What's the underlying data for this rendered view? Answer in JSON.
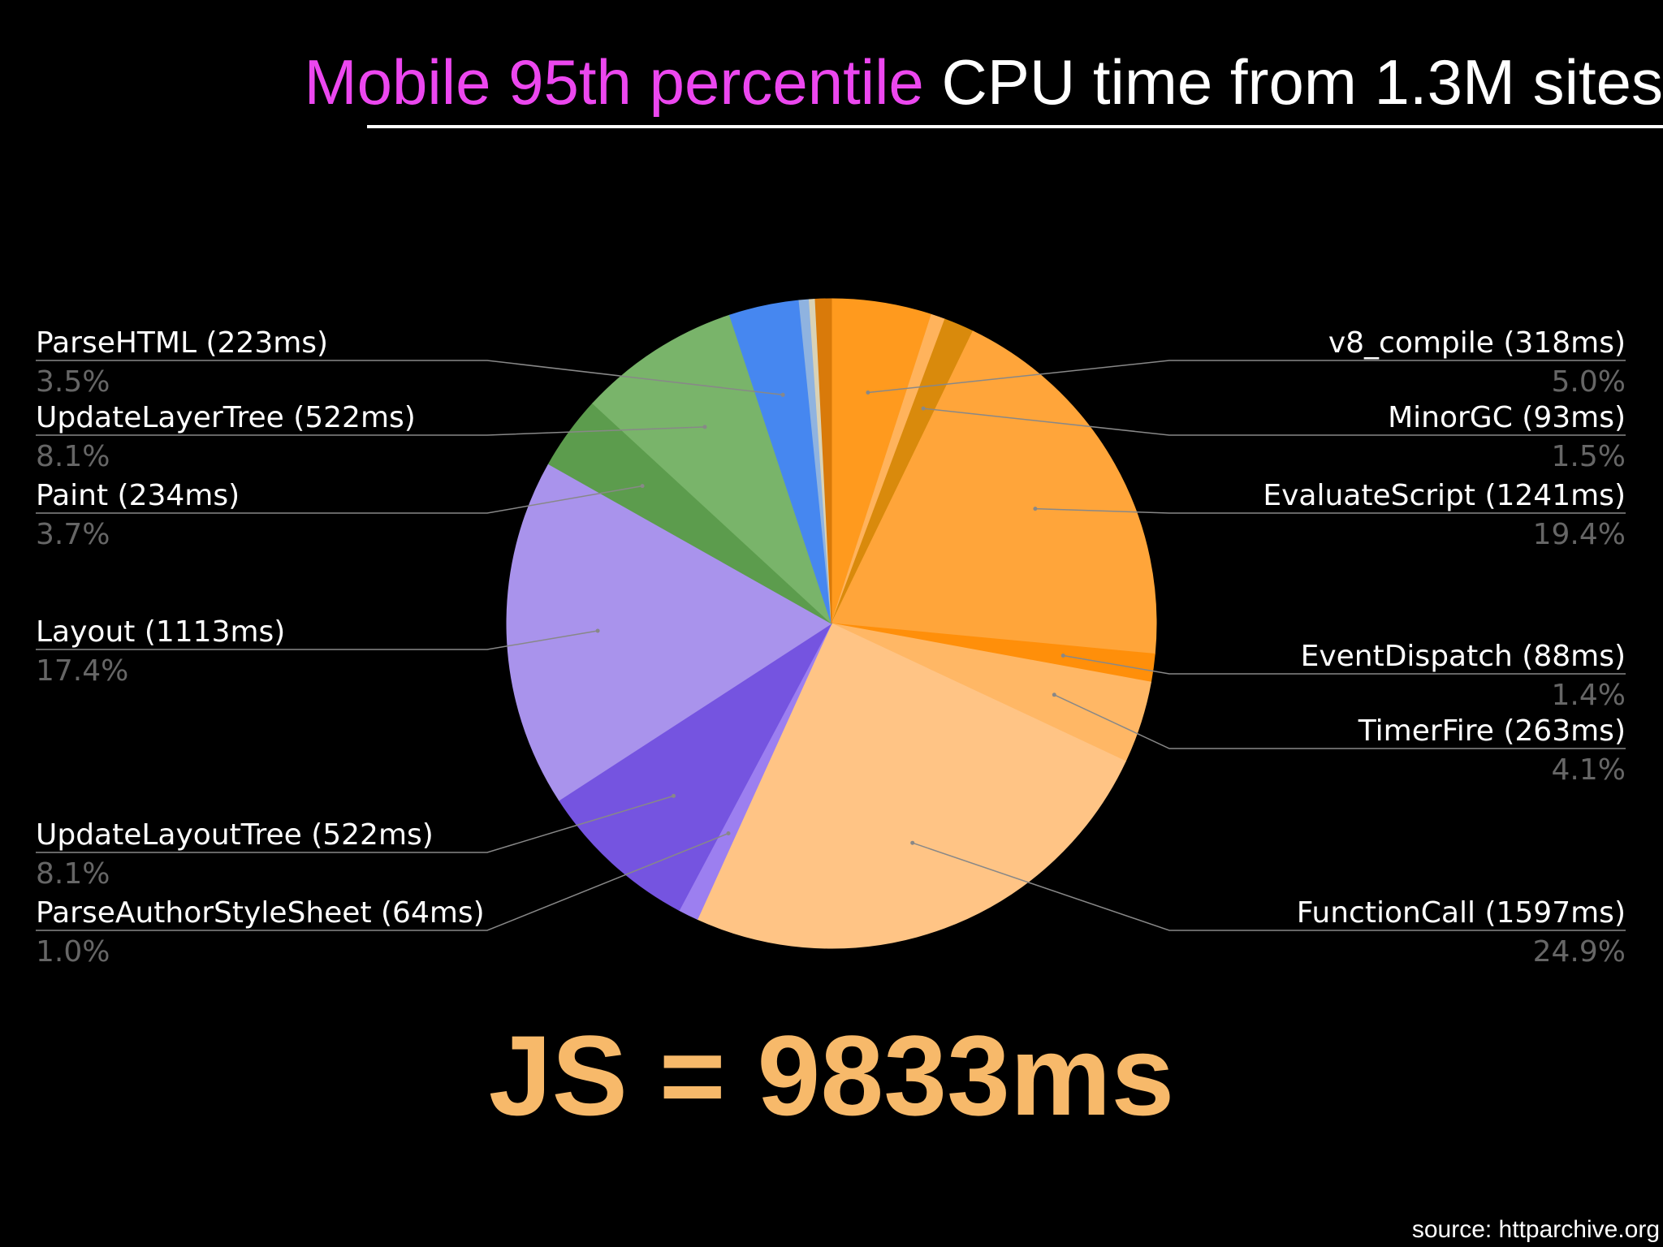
{
  "title": {
    "accent_text": "Mobile 95th percentile",
    "rest_text": " CPU time from 1.3M sites",
    "accent_color": "#ec47ef"
  },
  "headline": "JS = 9833ms",
  "source": "source: httparchive.org",
  "chart_data": {
    "type": "pie",
    "title": "",
    "start_angle_deg": 0,
    "direction": "clockwise",
    "label_color": "#ffffff",
    "percent_color": "#666666",
    "leader_color": "#888888",
    "slices": [
      {
        "name": "v8_compile",
        "label": "v8_compile (318ms)",
        "ms": 318,
        "percent": 5.0,
        "percent_label": "5.0%",
        "color": "#ff9a1e",
        "side": "right",
        "row": 1
      },
      {
        "name": "unlabeled",
        "label": "",
        "ms": 0,
        "percent": 0.7,
        "percent_label": "",
        "color": "#ffb35c",
        "side": "none",
        "row": 0
      },
      {
        "name": "MinorGC",
        "label": "MinorGC (93ms)",
        "ms": 93,
        "percent": 1.5,
        "percent_label": "1.5%",
        "color": "#d98a0c",
        "side": "right",
        "row": 2
      },
      {
        "name": "EvaluateScript",
        "label": "EvaluateScript (1241ms)",
        "ms": 1241,
        "percent": 19.4,
        "percent_label": "19.4%",
        "color": "#ffa53a",
        "side": "right",
        "row": 3
      },
      {
        "name": "EventDispatch",
        "label": "EventDispatch (88ms)",
        "ms": 88,
        "percent": 1.4,
        "percent_label": "1.4%",
        "color": "#ff8f0a",
        "side": "right",
        "row": 4
      },
      {
        "name": "TimerFire",
        "label": "TimerFire (263ms)",
        "ms": 263,
        "percent": 4.1,
        "percent_label": "4.1%",
        "color": "#ffb765",
        "side": "right",
        "row": 5
      },
      {
        "name": "FunctionCall",
        "label": "FunctionCall (1597ms)",
        "ms": 1597,
        "percent": 24.9,
        "percent_label": "24.9%",
        "color": "#ffc485",
        "side": "right",
        "row": 6
      },
      {
        "name": "ParseAuthorStyleSheet",
        "label": "ParseAuthorStyleSheet (64ms)",
        "ms": 64,
        "percent": 1.0,
        "percent_label": "1.0%",
        "color": "#9c7ff0",
        "side": "left",
        "row": 6
      },
      {
        "name": "UpdateLayoutTree",
        "label": "UpdateLayoutTree (522ms)",
        "ms": 522,
        "percent": 8.1,
        "percent_label": "8.1%",
        "color": "#7554e0",
        "side": "left",
        "row": 5
      },
      {
        "name": "Layout",
        "label": "Layout (1113ms)",
        "ms": 1113,
        "percent": 17.4,
        "percent_label": "17.4%",
        "color": "#a993ec",
        "side": "left",
        "row": 4
      },
      {
        "name": "Paint",
        "label": "Paint (234ms)",
        "ms": 234,
        "percent": 3.7,
        "percent_label": "3.7%",
        "color": "#5c9c4d",
        "side": "left",
        "row": 3
      },
      {
        "name": "UpdateLayerTree",
        "label": "UpdateLayerTree (522ms)",
        "ms": 522,
        "percent": 8.1,
        "percent_label": "8.1%",
        "color": "#79b46a",
        "side": "left",
        "row": 2
      },
      {
        "name": "ParseHTML",
        "label": "ParseHTML (223ms)",
        "ms": 223,
        "percent": 3.5,
        "percent_label": "3.5%",
        "color": "#4687f0",
        "side": "left",
        "row": 1
      },
      {
        "name": "unlabeled",
        "label": "",
        "ms": 0,
        "percent": 0.5,
        "percent_label": "",
        "color": "#8fb3e0",
        "side": "none",
        "row": 0
      },
      {
        "name": "unlabeled",
        "label": "",
        "ms": 0,
        "percent": 0.3,
        "percent_label": "",
        "color": "#d9d2b6",
        "side": "none",
        "row": 0
      },
      {
        "name": "unlabeled",
        "label": "",
        "ms": 0,
        "percent": 0.8,
        "percent_label": "",
        "color": "#d97a0a",
        "side": "none",
        "row": 0
      }
    ]
  }
}
